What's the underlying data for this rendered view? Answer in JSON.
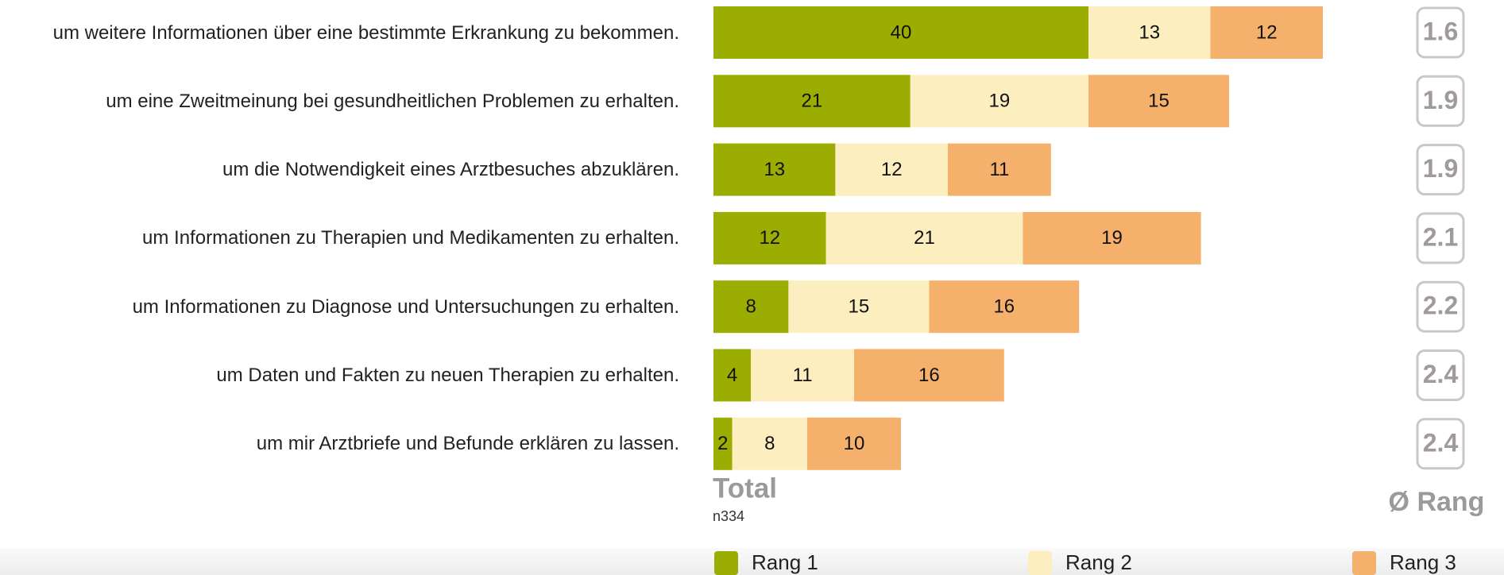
{
  "chart_data": {
    "type": "stacked-bar",
    "orientation": "horizontal",
    "categories": [
      "um weitere Informationen über eine bestimmte Erkrankung zu bekommen.",
      "um eine Zweitmeinung bei gesundheitlichen Problemen zu erhalten.",
      "um die Notwendigkeit eines Arztbesuches abzuklären.",
      "um Informationen zu Therapien und Medikamenten zu erhalten.",
      "um Informationen zu Diagnose und Untersuchungen zu erhalten.",
      "um Daten und Fakten zu neuen Therapien zu erhalten.",
      "um mir Arztbriefe und Befunde erklären zu lassen."
    ],
    "series": [
      {
        "name": "Rang 1",
        "color": "#9aad00",
        "values": [
          40,
          21,
          13,
          12,
          8,
          4,
          2
        ]
      },
      {
        "name": "Rang 2",
        "color": "#fdeec0",
        "values": [
          13,
          19,
          12,
          21,
          15,
          11,
          8
        ]
      },
      {
        "name": "Rang 3",
        "color": "#f5b06b",
        "values": [
          12,
          15,
          11,
          19,
          16,
          16,
          10
        ]
      }
    ],
    "group_label": "Total",
    "sample_size": "n334",
    "rank_average": {
      "title": "Ø Rang",
      "values": [
        1.6,
        1.9,
        1.9,
        2.1,
        2.2,
        2.4,
        2.4
      ]
    }
  }
}
